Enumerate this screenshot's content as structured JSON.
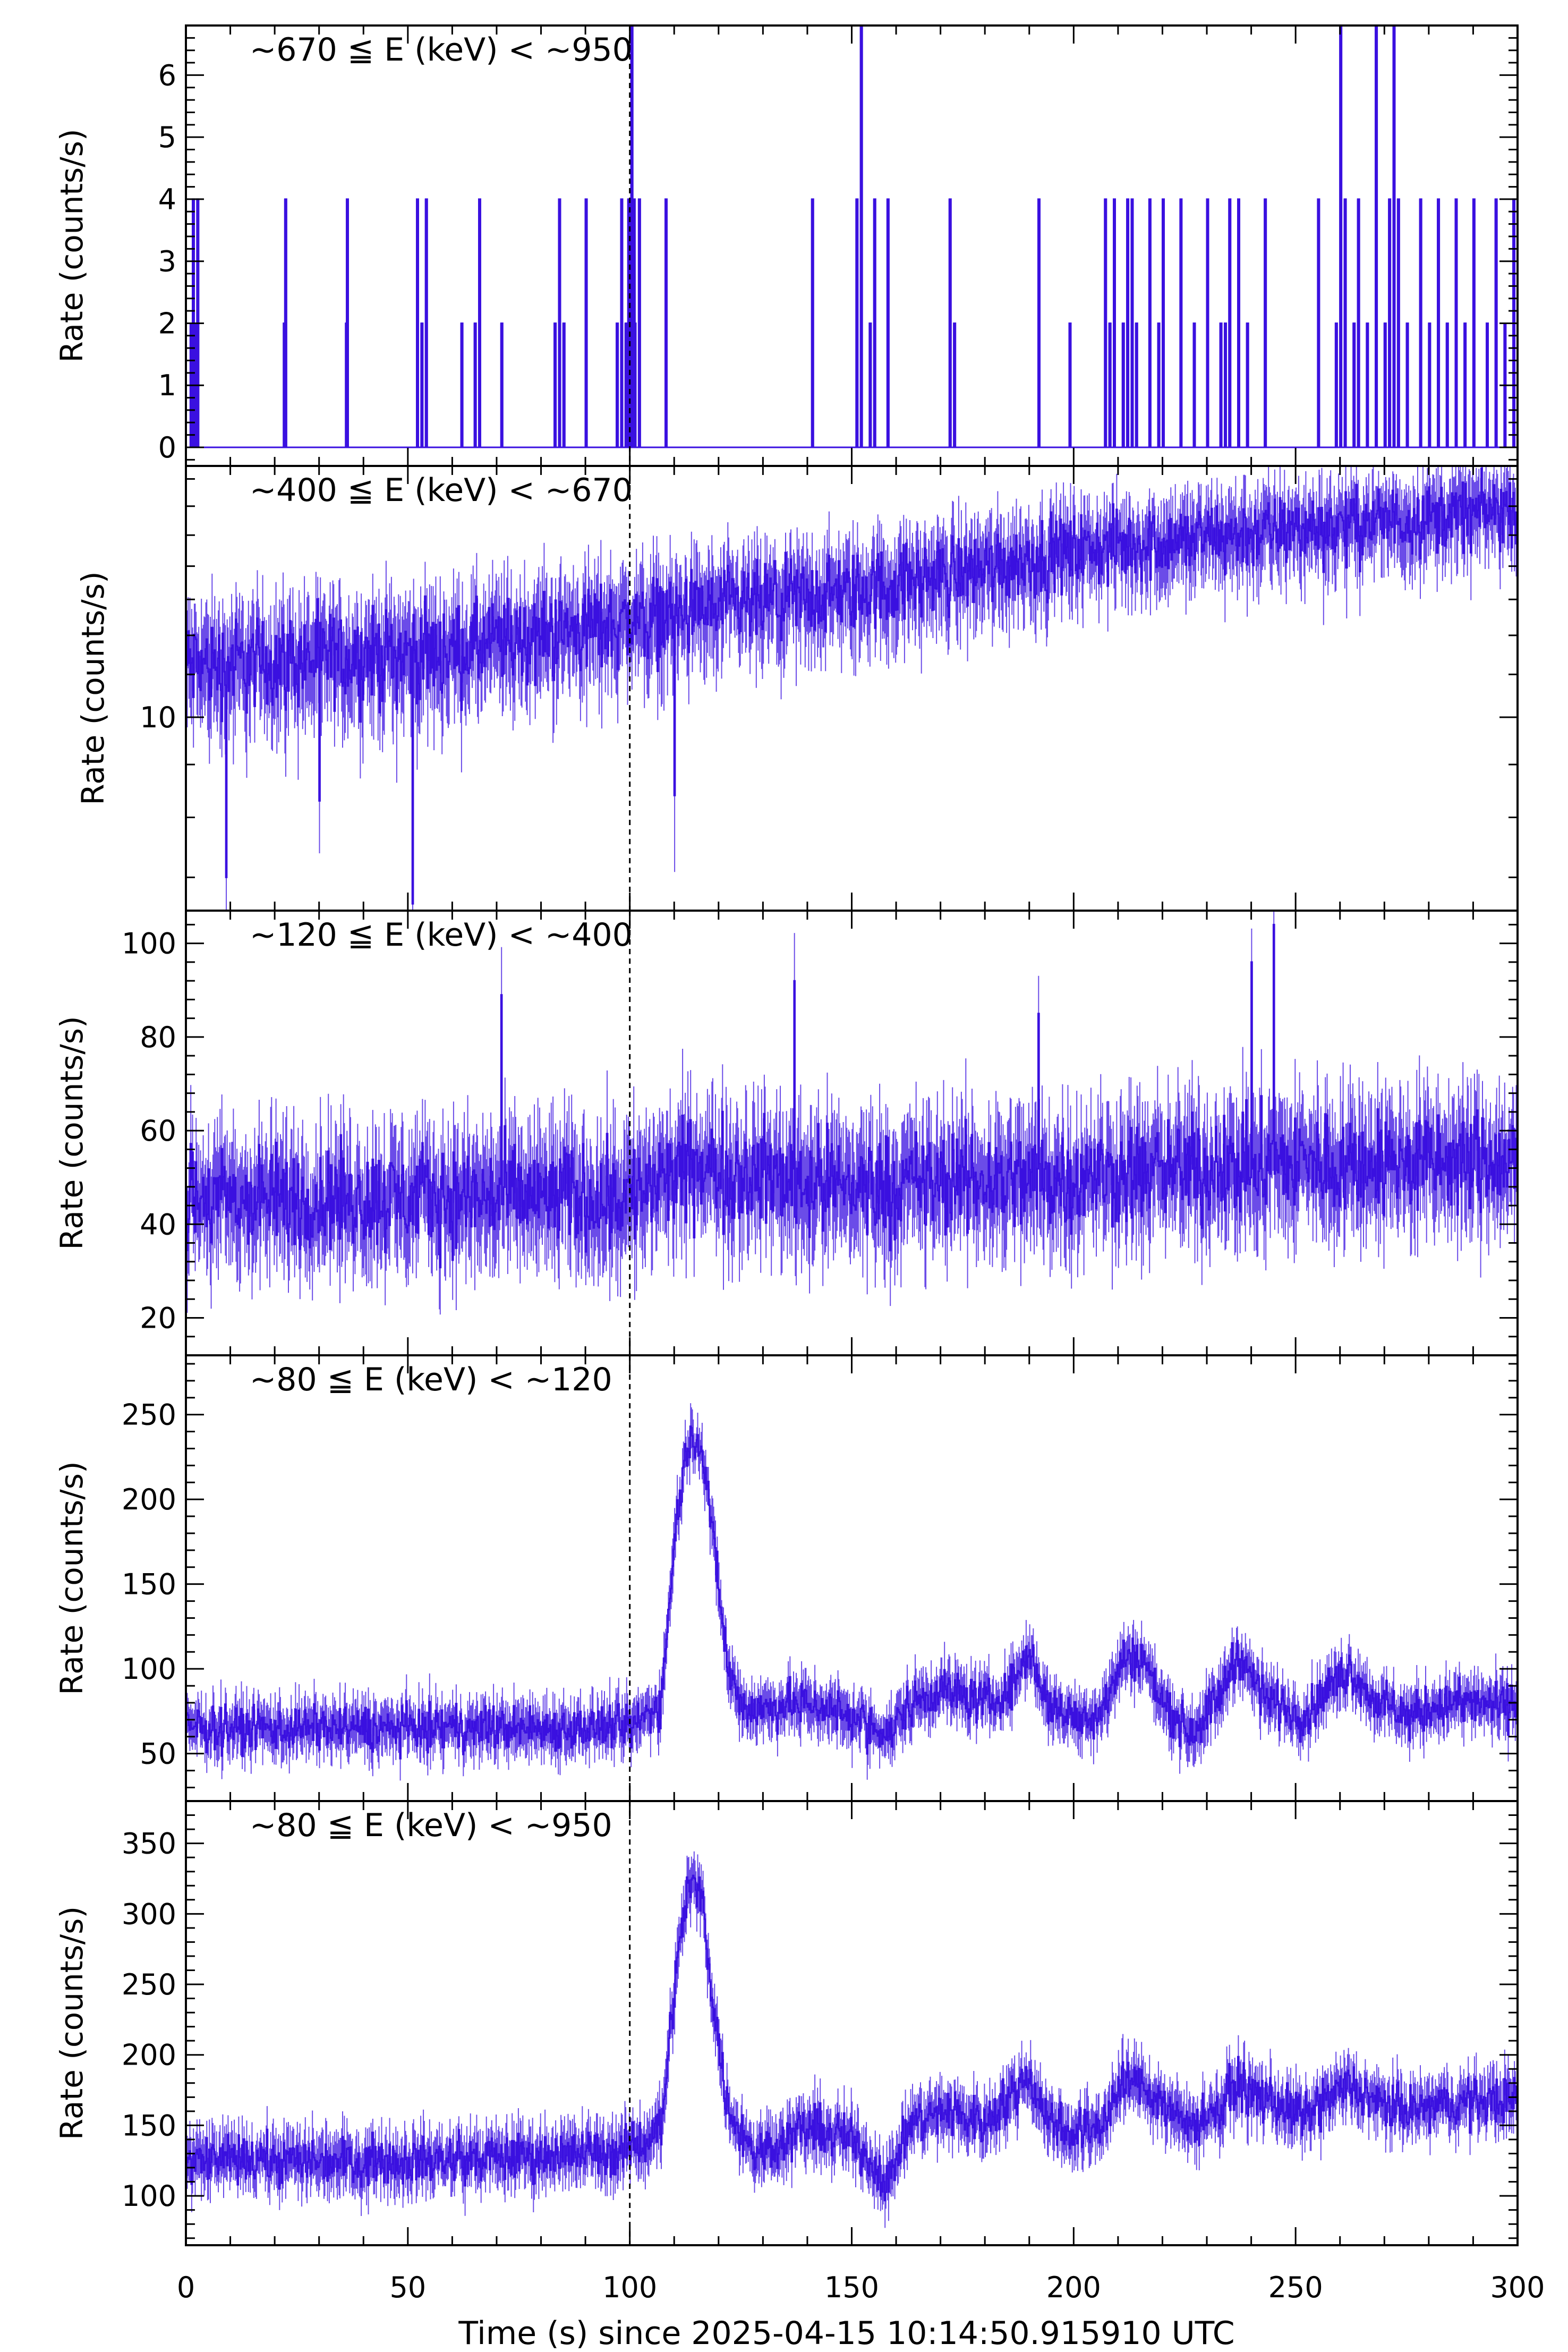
{
  "figure": {
    "x_axis_label": "Time (s) since 2025-04-15 10:14:50.915910 UTC",
    "x_tick_labels": [
      "0",
      "50",
      "100",
      "150",
      "200",
      "250",
      "300"
    ],
    "trigger_time": 100,
    "colors": {
      "series": "#3a10e0",
      "axes": "#000000",
      "marker": "#000000"
    }
  },
  "chart_data": [
    {
      "type": "line",
      "title": "~670 ≦ E (keV) < ~950",
      "ylabel": "Rate (counts/s)",
      "xlim": [
        0,
        300
      ],
      "ylim": [
        -0.3,
        6.8
      ],
      "y_ticks": [
        0,
        1,
        2,
        3,
        4,
        5,
        6
      ],
      "y_tick_labels": [
        "0",
        "1",
        "2",
        "3",
        "4",
        "5",
        "6"
      ],
      "y_scale": "linear",
      "style": "sparse-spikes",
      "spikes": [
        [
          1,
          2
        ],
        [
          1.5,
          4
        ],
        [
          2,
          2
        ],
        [
          2.5,
          4
        ],
        [
          22,
          2
        ],
        [
          22.3,
          4
        ],
        [
          36,
          2
        ],
        [
          36.2,
          4
        ],
        [
          52,
          4
        ],
        [
          53,
          2
        ],
        [
          54,
          4
        ],
        [
          62,
          2
        ],
        [
          65,
          2
        ],
        [
          66,
          4
        ],
        [
          71,
          2
        ],
        [
          83,
          2
        ],
        [
          84,
          4
        ],
        [
          85,
          2
        ],
        [
          90,
          4
        ],
        [
          97,
          2
        ],
        [
          98,
          4
        ],
        [
          99,
          2
        ],
        [
          99.6,
          4
        ],
        [
          100.3,
          6.8
        ],
        [
          100.8,
          4
        ],
        [
          101,
          2
        ],
        [
          102,
          4
        ],
        [
          108,
          4
        ],
        [
          141,
          4
        ],
        [
          151,
          4
        ],
        [
          152,
          6.8
        ],
        [
          154,
          2
        ],
        [
          155,
          4
        ],
        [
          158,
          4
        ],
        [
          172,
          4
        ],
        [
          173,
          2
        ],
        [
          192,
          4
        ],
        [
          199,
          2
        ],
        [
          207,
          4
        ],
        [
          208,
          2
        ],
        [
          209,
          4
        ],
        [
          211,
          2
        ],
        [
          212,
          4
        ],
        [
          213,
          4
        ],
        [
          214,
          2
        ],
        [
          217,
          4
        ],
        [
          219,
          2
        ],
        [
          220,
          4
        ],
        [
          224,
          4
        ],
        [
          227,
          2
        ],
        [
          230,
          4
        ],
        [
          233,
          2
        ],
        [
          234,
          2
        ],
        [
          235,
          4
        ],
        [
          237,
          4
        ],
        [
          239,
          2
        ],
        [
          243,
          4
        ],
        [
          255,
          4
        ],
        [
          259,
          2
        ],
        [
          260,
          6.8
        ],
        [
          261,
          4
        ],
        [
          263,
          2
        ],
        [
          264,
          4
        ],
        [
          266,
          2
        ],
        [
          268,
          6.8
        ],
        [
          270,
          2
        ],
        [
          271,
          4
        ],
        [
          272,
          6.8
        ],
        [
          273,
          4
        ],
        [
          275,
          2
        ],
        [
          278,
          4
        ],
        [
          280,
          2
        ],
        [
          282,
          4
        ],
        [
          284,
          2
        ],
        [
          286,
          4
        ],
        [
          288,
          2
        ],
        [
          290,
          4
        ],
        [
          293,
          2
        ],
        [
          295,
          4
        ],
        [
          297,
          2
        ],
        [
          299,
          4
        ]
      ]
    },
    {
      "type": "line",
      "title": "~400 ≦ E (keV) < ~670",
      "ylabel": "Rate (counts/s)",
      "xlim": [
        0,
        300
      ],
      "ylim": [
        6.5,
        17.5
      ],
      "y_ticks": [
        10
      ],
      "y_tick_labels": [
        "10"
      ],
      "y_scale": "log",
      "baseline": [
        [
          0,
          11.2
        ],
        [
          60,
          11.6
        ],
        [
          100,
          12.4
        ],
        [
          150,
          13.2
        ],
        [
          200,
          14.5
        ],
        [
          250,
          15.2
        ],
        [
          300,
          15.9
        ]
      ],
      "spread": 1.3,
      "dips": [
        [
          9,
          7
        ],
        [
          30,
          8.3
        ],
        [
          51,
          6.6
        ],
        [
          110,
          8.4
        ]
      ]
    },
    {
      "type": "line",
      "title": "~120 ≦ E (keV) < ~400",
      "ylabel": "Rate (counts/s)",
      "xlim": [
        0,
        300
      ],
      "ylim": [
        12,
        107
      ],
      "y_ticks": [
        20,
        40,
        60,
        80,
        100
      ],
      "y_tick_labels": [
        "20",
        "40",
        "60",
        "80",
        "100"
      ],
      "y_scale": "linear",
      "baseline": [
        [
          0,
          45
        ],
        [
          100,
          46
        ],
        [
          115,
          52
        ],
        [
          150,
          48
        ],
        [
          200,
          50
        ],
        [
          250,
          53
        ],
        [
          300,
          53
        ]
      ],
      "spread": 12,
      "spikes": [
        [
          71,
          89
        ],
        [
          137,
          92
        ],
        [
          192,
          85
        ],
        [
          240,
          96
        ],
        [
          245,
          104
        ]
      ]
    },
    {
      "type": "line",
      "title": "~80 ≦ E (keV) < ~120",
      "ylabel": "Rate (counts/s)",
      "xlim": [
        0,
        300
      ],
      "ylim": [
        22,
        285
      ],
      "y_ticks": [
        50,
        100,
        150,
        200,
        250
      ],
      "y_tick_labels": [
        "50",
        "100",
        "150",
        "200",
        "250"
      ],
      "y_scale": "linear",
      "baseline": [
        [
          0,
          65
        ],
        [
          100,
          65
        ],
        [
          107,
          80
        ],
        [
          110,
          180
        ],
        [
          113,
          235
        ],
        [
          116,
          235
        ],
        [
          119,
          170
        ],
        [
          122,
          100
        ],
        [
          126,
          75
        ],
        [
          140,
          80
        ],
        [
          150,
          72
        ],
        [
          158,
          60
        ],
        [
          163,
          80
        ],
        [
          170,
          88
        ],
        [
          180,
          80
        ],
        [
          185,
          85
        ],
        [
          190,
          110
        ],
        [
          194,
          80
        ],
        [
          200,
          70
        ],
        [
          206,
          75
        ],
        [
          211,
          105
        ],
        [
          215,
          108
        ],
        [
          220,
          80
        ],
        [
          226,
          62
        ],
        [
          232,
          80
        ],
        [
          237,
          110
        ],
        [
          241,
          90
        ],
        [
          246,
          78
        ],
        [
          252,
          72
        ],
        [
          258,
          90
        ],
        [
          262,
          100
        ],
        [
          268,
          80
        ],
        [
          275,
          72
        ],
        [
          285,
          80
        ],
        [
          300,
          78
        ]
      ],
      "spread": 14
    },
    {
      "type": "line",
      "title": "~80 ≦ E (keV) < ~950",
      "ylabel": "Rate (counts/s)",
      "xlim": [
        0,
        300
      ],
      "ylim": [
        65,
        380
      ],
      "y_ticks": [
        100,
        150,
        200,
        250,
        300,
        350
      ],
      "y_tick_labels": [
        "100",
        "150",
        "200",
        "250",
        "300",
        "350"
      ],
      "y_scale": "linear",
      "baseline": [
        [
          0,
          125
        ],
        [
          60,
          125
        ],
        [
          100,
          132
        ],
        [
          107,
          150
        ],
        [
          110,
          250
        ],
        [
          113,
          320
        ],
        [
          116,
          315
        ],
        [
          119,
          230
        ],
        [
          122,
          160
        ],
        [
          128,
          130
        ],
        [
          140,
          148
        ],
        [
          150,
          140
        ],
        [
          158,
          110
        ],
        [
          163,
          150
        ],
        [
          170,
          160
        ],
        [
          180,
          152
        ],
        [
          190,
          185
        ],
        [
          194,
          155
        ],
        [
          200,
          145
        ],
        [
          206,
          150
        ],
        [
          211,
          180
        ],
        [
          215,
          180
        ],
        [
          220,
          165
        ],
        [
          226,
          150
        ],
        [
          232,
          160
        ],
        [
          237,
          180
        ],
        [
          241,
          170
        ],
        [
          246,
          165
        ],
        [
          252,
          155
        ],
        [
          258,
          170
        ],
        [
          262,
          178
        ],
        [
          268,
          165
        ],
        [
          275,
          160
        ],
        [
          285,
          165
        ],
        [
          300,
          170
        ]
      ],
      "spread": 18
    }
  ]
}
